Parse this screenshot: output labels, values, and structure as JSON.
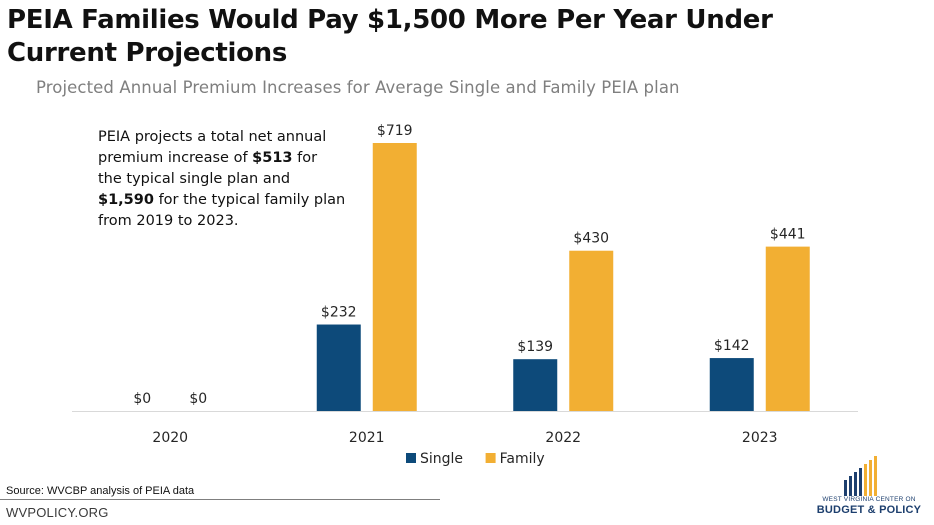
{
  "header": {
    "title": "PEIA Families Would Pay $1,500 More Per Year Under Current Projections",
    "subtitle": "Projected Annual Premium Increases for Average Single and Family PEIA plan"
  },
  "annotation": {
    "line1": "PEIA projects a total net annual",
    "line2_pre": "premium increase of ",
    "line2_bold": "$513",
    "line2_post": " for",
    "line3": "the typical single plan and",
    "line4_bold": "$1,590",
    "line4_post": " for the typical family plan",
    "line5": "from 2019 to 2023."
  },
  "chart_data": {
    "type": "bar",
    "categories": [
      "2020",
      "2021",
      "2022",
      "2023"
    ],
    "series": [
      {
        "name": "Single",
        "color": "#0d4a7a",
        "values": [
          0,
          232,
          139,
          142
        ],
        "labels": [
          "$0",
          "$232",
          "$139",
          "$142"
        ]
      },
      {
        "name": "Family",
        "color": "#f2af33",
        "values": [
          0,
          719,
          430,
          441
        ],
        "labels": [
          "$0",
          "$719",
          "$430",
          "$441"
        ]
      }
    ],
    "legend_position": "bottom",
    "grid": false
  },
  "footer": {
    "source": "Source: WVCBP analysis of PEIA data",
    "site": "WVPOLICY.ORG"
  },
  "logo": {
    "line1": "WEST VIRGINIA CENTER ON",
    "line2": "BUDGET & POLICY"
  }
}
